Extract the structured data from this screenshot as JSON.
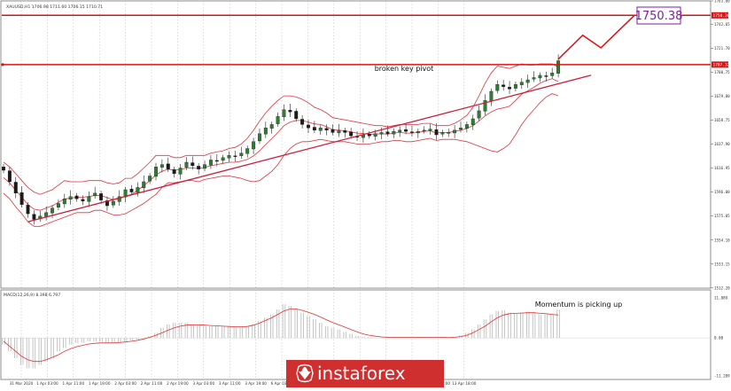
{
  "chart_data": [
    {
      "type": "candlestick",
      "instrument_header": "XAUUSD,H1 1706.98 1711.60 1706.15 1710.71",
      "price_scale_labels": [
        "1763.00",
        "1742.65",
        "1721.70",
        "1700.75",
        "1679.80",
        "1658.75",
        "1637.90",
        "1616.95",
        "1596.00",
        "1575.05",
        "1554.10",
        "1533.15",
        "1512.20"
      ],
      "time_labels": [
        "31 Mar 2020",
        "1 Apr 03:00",
        "1 Apr 11:00",
        "1 Apr 19:00",
        "2 Apr 03:00",
        "2 Apr 11:00",
        "2 Apr 19:00",
        "3 Apr 03:00",
        "3 Apr 11:00",
        "3 Apr 19:00",
        "6 Apr 03:00",
        "6 Apr 11:00",
        "6 Apr 19:00",
        "9 Apr 09:00",
        "9 Apr 17:00",
        "13 Apr 01:00",
        "13 Apr 09:00",
        "13 Apr 18:00"
      ],
      "ylim": [
        1512,
        1763
      ],
      "levels": [
        {
          "name": "target",
          "price": 1750.38,
          "label": "1750.38",
          "axis_tag": "1750.38"
        },
        {
          "name": "broken-key-pivot",
          "price": 1707.32,
          "label": "broken key pivot",
          "axis_tag": "1707.32"
        }
      ],
      "trendline": {
        "start": {
          "bar": 4,
          "price": 1570.0
        },
        "end": {
          "bar": 92,
          "price": 1698.0
        }
      },
      "projection": {
        "bars": [
          91,
          95,
          98,
          103
        ],
        "prices": [
          1712,
          1733,
          1722,
          1750.38
        ]
      },
      "closes": [
        1615,
        1605,
        1595,
        1585,
        1577,
        1572,
        1575,
        1578,
        1582,
        1586,
        1590,
        1592,
        1590,
        1588,
        1592,
        1595,
        1589,
        1584,
        1588,
        1592,
        1598,
        1596,
        1600,
        1605,
        1610,
        1618,
        1620,
        1616,
        1612,
        1617,
        1622,
        1619,
        1616,
        1620,
        1624,
        1623,
        1626,
        1628,
        1627,
        1630,
        1634,
        1640,
        1647,
        1652,
        1655,
        1662,
        1668,
        1666,
        1660,
        1655,
        1652,
        1650,
        1652,
        1650,
        1648,
        1650,
        1648,
        1645,
        1644,
        1646,
        1645,
        1647,
        1648,
        1647,
        1649,
        1650,
        1649,
        1648,
        1649,
        1650,
        1651,
        1646,
        1648,
        1648,
        1650,
        1652,
        1655,
        1660,
        1667,
        1676,
        1684,
        1690,
        1688,
        1686,
        1690,
        1692,
        1694,
        1696,
        1698,
        1697,
        1700,
        1710.7
      ],
      "bollinger_upper": [
        1622,
        1618,
        1612,
        1606,
        1600,
        1596,
        1594,
        1596,
        1598,
        1602,
        1606,
        1605,
        1605,
        1605,
        1606,
        1606,
        1606,
        1604,
        1603,
        1604,
        1608,
        1608,
        1612,
        1617,
        1622,
        1628,
        1628,
        1628,
        1626,
        1626,
        1628,
        1628,
        1628,
        1628,
        1630,
        1631,
        1632,
        1634,
        1635,
        1638,
        1643,
        1650,
        1658,
        1665,
        1671,
        1676,
        1680,
        1680,
        1679,
        1677,
        1674,
        1670,
        1668,
        1665,
        1661,
        1660,
        1659,
        1658,
        1657,
        1656,
        1655,
        1654,
        1654,
        1653,
        1654,
        1655,
        1655,
        1655,
        1655,
        1656,
        1656,
        1654,
        1654,
        1654,
        1656,
        1659,
        1663,
        1670,
        1680,
        1691,
        1700,
        1706,
        1705,
        1704,
        1706,
        1708,
        1707,
        1707,
        1708,
        1708,
        1708,
        1705
      ],
      "bollinger_lower": [
        1595,
        1590,
        1583,
        1577,
        1570,
        1566,
        1566,
        1568,
        1570,
        1572,
        1574,
        1576,
        1578,
        1578,
        1578,
        1580,
        1580,
        1578,
        1576,
        1576,
        1577,
        1580,
        1583,
        1586,
        1590,
        1594,
        1600,
        1604,
        1604,
        1605,
        1606,
        1606,
        1605,
        1607,
        1608,
        1609,
        1610,
        1610,
        1609,
        1608,
        1606,
        1605,
        1606,
        1610,
        1614,
        1620,
        1628,
        1634,
        1638,
        1640,
        1640,
        1641,
        1642,
        1641,
        1640,
        1640,
        1640,
        1639,
        1638,
        1638,
        1638,
        1639,
        1640,
        1640,
        1641,
        1641,
        1640,
        1640,
        1641,
        1642,
        1643,
        1641,
        1642,
        1642,
        1642,
        1641,
        1640,
        1638,
        1636,
        1634,
        1632,
        1631,
        1634,
        1638,
        1646,
        1655,
        1662,
        1668,
        1674,
        1679,
        1682,
        1680
      ],
      "indicator": {
        "type": "MACD",
        "header": "MACD(12,26,9) 8.398 6.797",
        "scale_labels": [
          "11.889",
          "0.00",
          "-11.289"
        ],
        "ylim": [
          -11.3,
          11.9
        ],
        "annotation": "Momentum is picking up",
        "histogram": [
          -2,
          -4,
          -6,
          -8,
          -9,
          -9,
          -8,
          -7,
          -6,
          -4,
          -3,
          -2,
          -1.5,
          -1.5,
          -1,
          -1,
          -1.2,
          -1.5,
          -1.5,
          -1.5,
          -1,
          -0.8,
          -0.5,
          0,
          0.5,
          1.5,
          3,
          4,
          4.5,
          4.5,
          4.5,
          4,
          3.8,
          3.5,
          3.5,
          3.5,
          3.4,
          3.3,
          3.2,
          3.2,
          3.4,
          4,
          5,
          6,
          7,
          8.5,
          10,
          9.5,
          8.5,
          7.5,
          6.5,
          5.5,
          4.5,
          3.5,
          3,
          2.5,
          1.8,
          1.2,
          0.6,
          0.3,
          0.2,
          0.1,
          0.2,
          0.2,
          0.3,
          0.3,
          0.3,
          0.2,
          0.2,
          0.2,
          0.3,
          0.2,
          0.2,
          0.1,
          0.3,
          0.8,
          1.5,
          2.5,
          4,
          5.5,
          7,
          8,
          8.2,
          7.5,
          7.2,
          7.6,
          7.8,
          7.5,
          7,
          7,
          6.8,
          8.4
        ],
        "signal": [
          -1,
          -2.5,
          -4,
          -5.5,
          -6.5,
          -7,
          -7,
          -6.5,
          -5.8,
          -5,
          -4,
          -3.2,
          -2.6,
          -2.2,
          -1.8,
          -1.6,
          -1.5,
          -1.5,
          -1.5,
          -1.4,
          -1.2,
          -1,
          -0.7,
          -0.3,
          0.2,
          0.8,
          1.5,
          2.3,
          3,
          3.5,
          3.8,
          3.9,
          3.9,
          3.8,
          3.7,
          3.6,
          3.5,
          3.4,
          3.3,
          3.3,
          3.4,
          3.8,
          4.4,
          5.2,
          6,
          7,
          8,
          8.6,
          8.6,
          8.2,
          7.6,
          7,
          6.2,
          5.4,
          4.6,
          3.9,
          3.2,
          2.5,
          1.8,
          1.2,
          0.8,
          0.5,
          0.3,
          0.2,
          0.2,
          0.2,
          0.2,
          0.2,
          0.2,
          0.2,
          0.2,
          0.2,
          0.2,
          0.1,
          0.2,
          0.4,
          0.8,
          1.5,
          2.5,
          3.5,
          4.8,
          6,
          6.8,
          7.2,
          7.3,
          7.4,
          7.5,
          7.5,
          7.3,
          7.2,
          7,
          6.8
        ]
      }
    }
  ],
  "colors": {
    "bull": "#2e7d32",
    "bear": "#1b1b1b",
    "bands": "#d9363e",
    "levels": "#e01010",
    "trendline": "#cc1e3a",
    "target_box": "#7b1fa2",
    "histogram": "#bdbdbd",
    "signal": "#e33232",
    "watermark_bg": "#cf2f2f"
  },
  "watermark": {
    "text": "instaforex",
    "icon": "instaforex-logo-icon"
  }
}
